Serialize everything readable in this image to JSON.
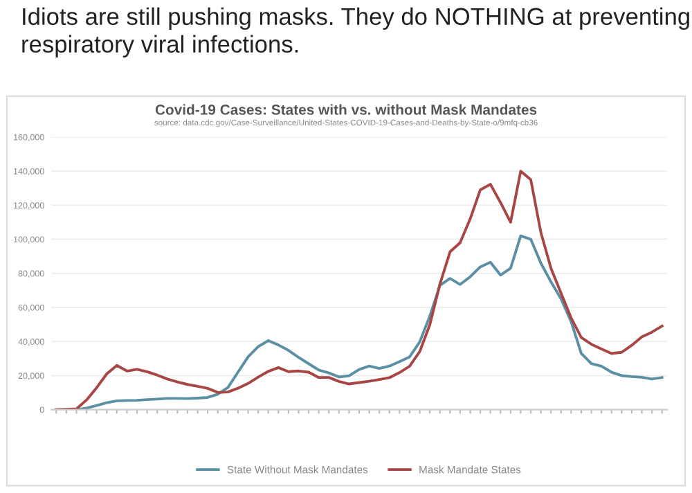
{
  "chart_data": {
    "type": "line",
    "title": "Covid-19 Cases: States with vs. without Mask Mandates",
    "subtitle": "source: data.cdc.gov/Case-Surveillance/United-States-COVID-19-Cases-and-Deaths-by-State-o/9mfq-cb36",
    "annotations": [
      "Idiots are still pushing masks. They do NOTHING at preventing respiratory viral infections."
    ],
    "categories": [
      null,
      null,
      null,
      null,
      null,
      null,
      null,
      null,
      null,
      null,
      null,
      null,
      null,
      null,
      null,
      null,
      null,
      null,
      null,
      null,
      null,
      null,
      null,
      null,
      null,
      null,
      null,
      null,
      null,
      null,
      null,
      null,
      null,
      null,
      null,
      null,
      null,
      null,
      null,
      null,
      null,
      null,
      null,
      null,
      null,
      null,
      null,
      null,
      null,
      null,
      null,
      null,
      null,
      null,
      null,
      null,
      null,
      null,
      null,
      null,
      null
    ],
    "series": [
      {
        "name": "State Without Mask Mandates",
        "color": "#5b8fa3",
        "values": [
          0,
          0,
          0,
          900,
          2500,
          4100,
          5200,
          5400,
          5500,
          5900,
          6200,
          6600,
          6600,
          6500,
          6800,
          7200,
          9100,
          13000,
          22000,
          31000,
          37000,
          40500,
          38000,
          34800,
          30700,
          27000,
          23300,
          21600,
          19200,
          19900,
          23600,
          25600,
          24200,
          25600,
          28200,
          31000,
          39800,
          54900,
          73000,
          77000,
          73500,
          78000,
          83800,
          86500,
          79000,
          83000,
          102000,
          100000,
          86000,
          75000,
          65000,
          51600,
          33000,
          27000,
          25500,
          22000,
          20000,
          19400,
          19000,
          18000,
          18900
        ]
      },
      {
        "name": "Mask Mandate States",
        "color": "#a84545",
        "values": [
          0,
          200,
          500,
          5700,
          12900,
          21000,
          26000,
          22700,
          23700,
          22300,
          20300,
          18000,
          16300,
          14800,
          13700,
          12500,
          10100,
          10400,
          12600,
          15400,
          19100,
          22500,
          24700,
          22300,
          22700,
          22000,
          18900,
          18900,
          16600,
          15100,
          15900,
          16700,
          17700,
          18800,
          21800,
          25500,
          34100,
          49800,
          73700,
          92600,
          98000,
          112000,
          129000,
          132300,
          121600,
          110000,
          140000,
          135000,
          104000,
          83000,
          68300,
          53800,
          42400,
          38400,
          35600,
          33000,
          33700,
          37800,
          42700,
          45500,
          49100
        ]
      }
    ],
    "ylim": [
      0,
      160000
    ],
    "yticks": [
      {
        "value": 0,
        "label": "0"
      },
      {
        "value": 20000,
        "label": "20,000"
      },
      {
        "value": 40000,
        "label": "40,000"
      },
      {
        "value": 60000,
        "label": "60,000"
      },
      {
        "value": 80000,
        "label": "80,000"
      },
      {
        "value": 100000,
        "label": "100,000"
      },
      {
        "value": 120000,
        "label": "120,000"
      },
      {
        "value": 140000,
        "label": "140,000"
      },
      {
        "value": 160000,
        "label": "160,000"
      }
    ],
    "grid": "y",
    "legend": "bottom",
    "tick_labels": "y"
  }
}
